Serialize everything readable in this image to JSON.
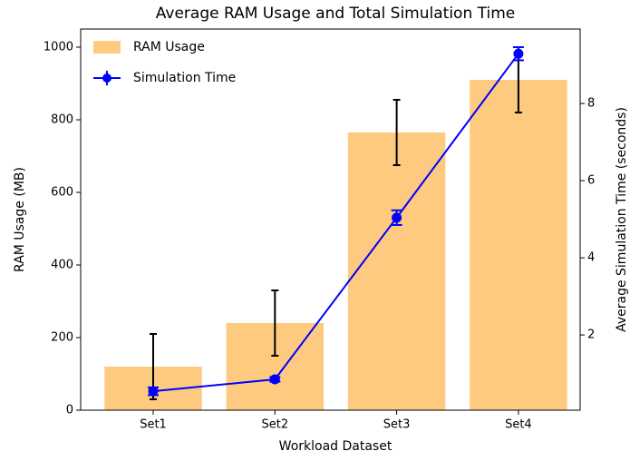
{
  "chart_data": {
    "type": "bar-line",
    "title": "Average RAM Usage and Total Simulation Time",
    "xlabel": "Workload Dataset",
    "ylabel": "RAM Usage (MB)",
    "y2label": "Average Simulation Time (seconds)",
    "categories": [
      "Set1",
      "Set2",
      "Set3",
      "Set4"
    ],
    "series": [
      {
        "name": "RAM Usage",
        "type": "bar",
        "color": "#fdca7f",
        "error_color": "#000000",
        "values": [
          120,
          240,
          765,
          910
        ],
        "errors": [
          90,
          90,
          90,
          90
        ]
      },
      {
        "name": "Simulation Time",
        "type": "line",
        "axis": "y2",
        "color": "#0000ff",
        "values": [
          0.54,
          0.85,
          5.04,
          9.29
        ],
        "errors": [
          0.1,
          0.06,
          0.19,
          0.17
        ]
      }
    ],
    "ylim": [
      0,
      1050
    ],
    "yticks": [
      0,
      200,
      400,
      600,
      800,
      1000
    ],
    "y2lim": [
      0.05,
      9.93
    ],
    "y2ticks": [
      2,
      4,
      6,
      8
    ],
    "legend": "upper left"
  }
}
